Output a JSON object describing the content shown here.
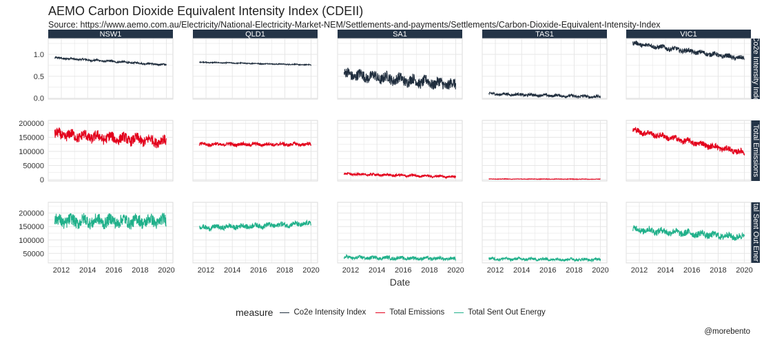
{
  "title": "AEMO Carbon Dioxide Equivalent Intensity Index (CDEII)",
  "subtitle": "Source: https://www.aemo.com.au/Electricity/National-Electricity-Market-NEM/Settlements-and-payments/Settlements/Carbon-Dioxide-Equivalent-Intensity-Index",
  "caption": "@morebento",
  "legend": {
    "title": "measure",
    "placement": "bottom",
    "items": [
      {
        "label": "Co2e Intensity Index",
        "color": "#1f2d3d"
      },
      {
        "label": "Total Emissions",
        "color": "#e3001b"
      },
      {
        "label": "Total Sent Out Energy",
        "color": "#20b08a"
      }
    ]
  },
  "chart_data": {
    "type": "line",
    "facet": "grid",
    "xlabel": "Date",
    "x_ticks": [
      "2012",
      "2014",
      "2016",
      "2018",
      "2020"
    ],
    "xlim": [
      "2011-01-01",
      "2020-06-30"
    ],
    "x_range": [
      "2011-07-01",
      "2019-12-31"
    ],
    "grid": true,
    "columns": [
      "NSW1",
      "QLD1",
      "SA1",
      "TAS1",
      "VIC1"
    ],
    "rows": [
      {
        "label": "Co2e Intensity Index",
        "strip_text": "Co2e Intensity Inde",
        "color": "#1f2d3d",
        "ylim": [
          -0.02,
          1.36
        ],
        "y_ticks": [
          "0.0",
          "0.5",
          "1.0"
        ],
        "y_tick_values": [
          0,
          0.5,
          1.0
        ],
        "series": {
          "NSW1": {
            "start": 0.92,
            "end": 0.76,
            "noise": 0.02
          },
          "QLD1": {
            "start": 0.82,
            "end": 0.76,
            "noise": 0.01
          },
          "SA1": {
            "start": 0.55,
            "end": 0.3,
            "noise": 0.12
          },
          "TAS1": {
            "start": 0.1,
            "end": 0.03,
            "noise": 0.03
          },
          "VIC1": {
            "start": 1.25,
            "end": 0.9,
            "noise": 0.05
          }
        }
      },
      {
        "label": "Total Emissions",
        "strip_text": "Total Emissions",
        "color": "#e3001b",
        "ylim": [
          -5000,
          210000
        ],
        "y_ticks": [
          "0",
          "50000",
          "100000",
          "150000",
          "200000"
        ],
        "y_tick_values": [
          0,
          50000,
          100000,
          150000,
          200000
        ],
        "series": {
          "NSW1": {
            "start": 160000,
            "end": 135000,
            "noise": 18000
          },
          "QLD1": {
            "start": 125000,
            "end": 125000,
            "noise": 6000
          },
          "SA1": {
            "start": 20000,
            "end": 10000,
            "noise": 4000
          },
          "TAS1": {
            "start": 2000,
            "end": 1500,
            "noise": 800
          },
          "VIC1": {
            "start": 175000,
            "end": 95000,
            "noise": 10000
          }
        }
      },
      {
        "label": "Total Sent Out Energy",
        "strip_text": "tal Sent Out Ener",
        "color": "#20b08a",
        "ylim": [
          15000,
          240000
        ],
        "y_ticks": [
          "50000",
          "100000",
          "150000",
          "200000"
        ],
        "y_tick_values": [
          50000,
          100000,
          150000,
          200000
        ],
        "series": {
          "NSW1": {
            "start": 170000,
            "end": 170000,
            "noise": 22000
          },
          "QLD1": {
            "start": 145000,
            "end": 160000,
            "noise": 9000
          },
          "SA1": {
            "start": 35000,
            "end": 30000,
            "noise": 6000
          },
          "TAS1": {
            "start": 30000,
            "end": 27000,
            "noise": 5000
          },
          "VIC1": {
            "start": 140000,
            "end": 110000,
            "noise": 12000
          }
        }
      }
    ]
  }
}
